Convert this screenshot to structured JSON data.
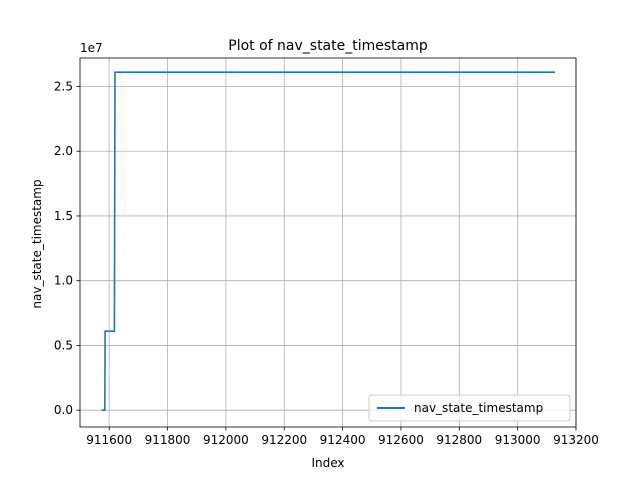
{
  "chart_data": {
    "type": "line",
    "title": "Plot of nav_state_timestamp",
    "xlabel": "Index",
    "ylabel": "nav_state_timestamp",
    "y_multiplier_label": "1e7",
    "xlim": [
      911500,
      913200
    ],
    "ylim": [
      -0.13,
      2.72
    ],
    "x_ticks": [
      911600,
      911800,
      912000,
      912200,
      912400,
      912600,
      912800,
      913000,
      913200
    ],
    "x_tick_labels": [
      "911600",
      "911800",
      "912000",
      "912200",
      "912400",
      "912600",
      "912800",
      "913000",
      "913200"
    ],
    "y_ticks": [
      0.0,
      0.5,
      1.0,
      1.5,
      2.0,
      2.5
    ],
    "y_tick_labels": [
      "0.0",
      "0.5",
      "1.0",
      "1.5",
      "2.0",
      "2.5"
    ],
    "grid": true,
    "legend_position": "lower-right",
    "series": [
      {
        "name": "nav_state_timestamp",
        "color": "#1f77b4",
        "x": [
          911574,
          911585,
          911586,
          911618,
          911620,
          913128
        ],
        "y": [
          0.0,
          0.0,
          0.61,
          0.61,
          2.61,
          2.61
        ]
      }
    ]
  }
}
